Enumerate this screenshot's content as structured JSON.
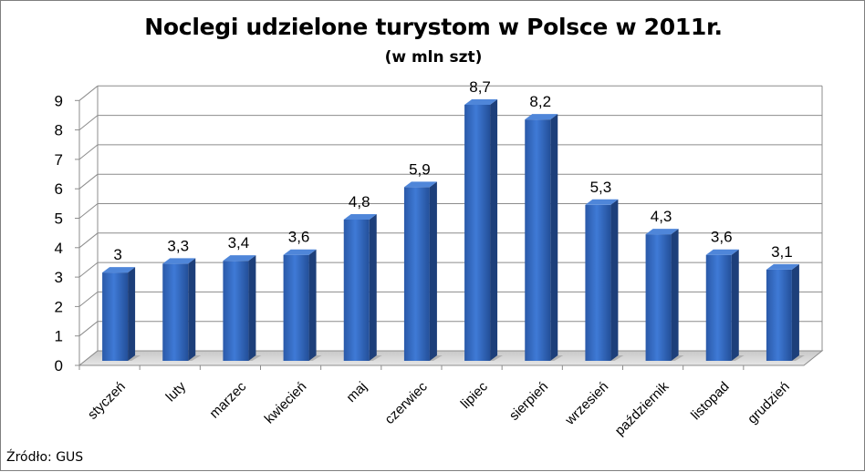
{
  "chart_data": {
    "type": "bar",
    "title": "Noclegi udzielone turystom w Polsce w 2011r.",
    "subtitle": "(w mln szt)",
    "categories": [
      "styczeń",
      "luty",
      "marzec",
      "kwiecień",
      "maj",
      "czerwiec",
      "lipiec",
      "sierpień",
      "wrzesień",
      "październik",
      "listopad",
      "grudzień"
    ],
    "values": [
      3,
      3.3,
      3.4,
      3.6,
      4.8,
      5.9,
      8.7,
      8.2,
      5.3,
      4.3,
      3.6,
      3.1
    ],
    "data_labels": [
      "3",
      "3,3",
      "3,4",
      "3,6",
      "4,8",
      "5,9",
      "8,7",
      "8,2",
      "5,3",
      "4,3",
      "3,6",
      "3,1"
    ],
    "y_ticks": [
      "0",
      "1",
      "2",
      "3",
      "4",
      "5",
      "6",
      "7",
      "8",
      "9"
    ],
    "ylim": [
      0,
      9
    ],
    "grid": true,
    "bar_color": "#2e62b7",
    "source": "Źródło: GUS"
  }
}
